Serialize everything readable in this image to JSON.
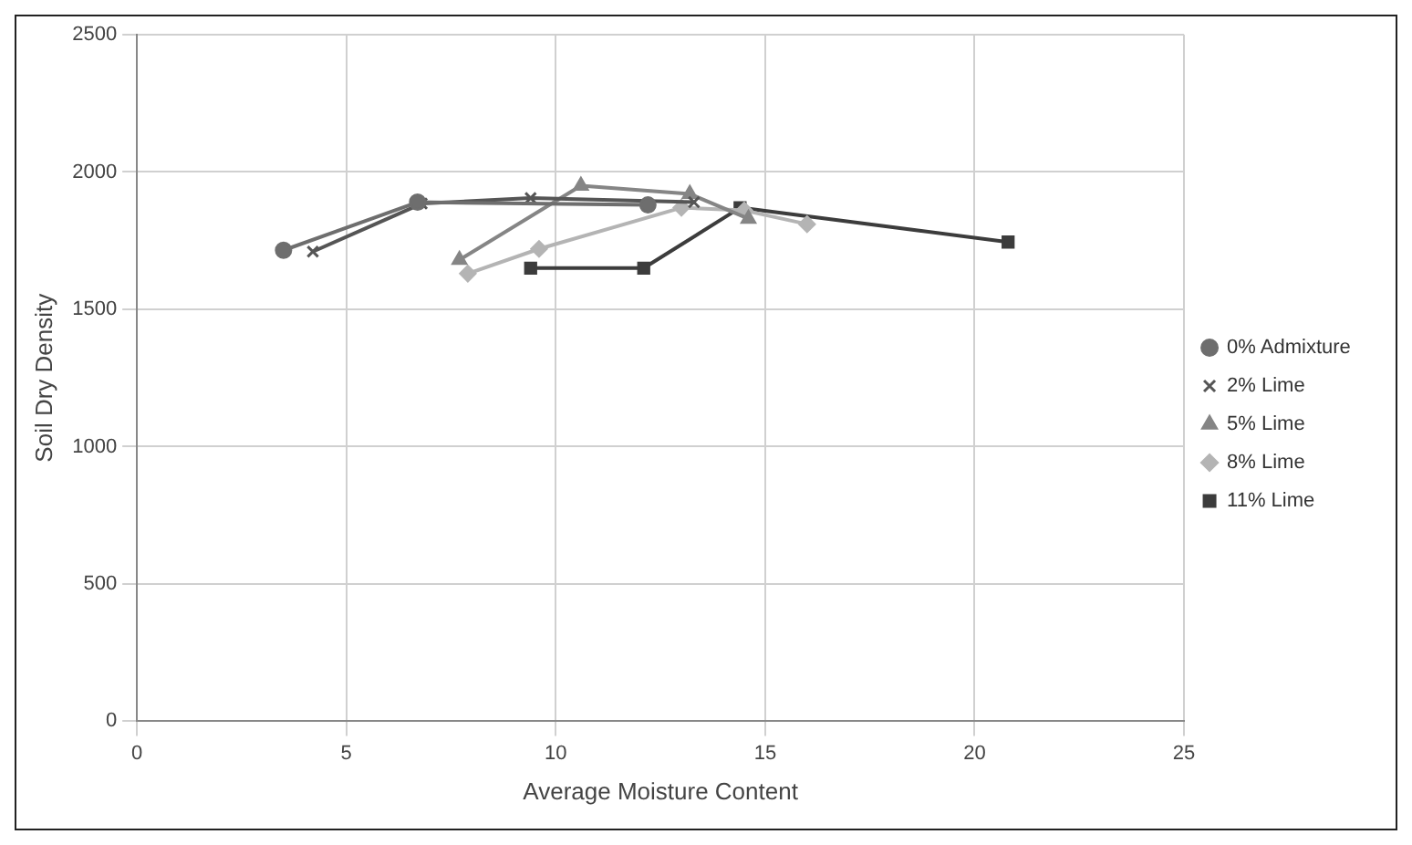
{
  "chart_data": {
    "type": "line",
    "xlabel": "Average Moisture Content",
    "ylabel": "Soil Dry Density",
    "xlim": [
      0,
      25
    ],
    "xticks": [
      0,
      5,
      10,
      15,
      20,
      25
    ],
    "ylim": [
      0,
      2500
    ],
    "yticks": [
      0,
      500,
      1000,
      1500,
      2000,
      2500
    ],
    "grid": true,
    "legend": "right",
    "series": [
      {
        "name": "0% Admixture",
        "color": "#6e6e6e",
        "marker": "circle",
        "x": [
          3.5,
          6.7,
          12.2
        ],
        "values": [
          1715,
          1890,
          1880
        ]
      },
      {
        "name": "2% Lime",
        "color": "#555555",
        "marker": "cross",
        "x": [
          4.2,
          6.8,
          9.4,
          13.3
        ],
        "values": [
          1710,
          1885,
          1905,
          1890
        ]
      },
      {
        "name": "5% Lime",
        "color": "#858585",
        "marker": "triangle",
        "x": [
          7.7,
          10.6,
          13.2,
          14.6
        ],
        "values": [
          1680,
          1950,
          1920,
          1830
        ]
      },
      {
        "name": "8% Lime",
        "color": "#b4b4b4",
        "marker": "diamond",
        "x": [
          7.9,
          9.6,
          13.0,
          14.5,
          16.0
        ],
        "values": [
          1630,
          1720,
          1870,
          1860,
          1810
        ]
      },
      {
        "name": "11% Lime",
        "color": "#3c3c3c",
        "marker": "square",
        "x": [
          9.4,
          12.1,
          14.4,
          20.8
        ],
        "values": [
          1650,
          1650,
          1870,
          1745
        ]
      }
    ]
  }
}
